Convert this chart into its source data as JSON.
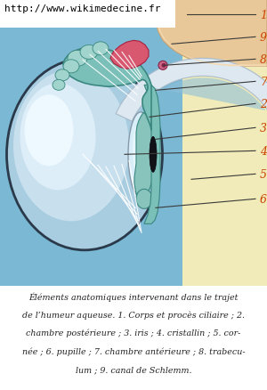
{
  "url": "http://www.wikimedecine.fr",
  "caption_lines": [
    "Éléments anatomiques intervenant dans le trajet",
    "de l’humeur aqueuse. 1. Corps et procès ciliaire ; 2.",
    "chambre postérieure ; 3. iris ; 4. cristallin ; 5. cor-",
    "née ; 6. pupille ; 7. chambre antérieure ; 8. trabecu-",
    "lum ; 9. canal de Schlemm."
  ],
  "bg_blue": "#7ab8d4",
  "bg_yellow": "#f0ebb8",
  "white": "#ffffff",
  "skin_color": "#e8c898",
  "skin_inner": "#f5dab4",
  "teal_color": "#7abfb8",
  "teal_dark": "#3a8880",
  "teal_light": "#a0d4cc",
  "red_color": "#d85870",
  "cornea_outer": "#dde8f0",
  "lens_color": "#d8eef8",
  "lens_hl": "#eef8ff",
  "globe_fill": "#a8cce0",
  "globe_light": "#c8e0ee",
  "globe_lighter": "#ddeef8",
  "globe_border": "#2a3a4a",
  "label_color": "#cc4400",
  "line_color": "#3a3a3a",
  "schlemm_color": "#cc6688",
  "schlemm_dark": "#882244"
}
